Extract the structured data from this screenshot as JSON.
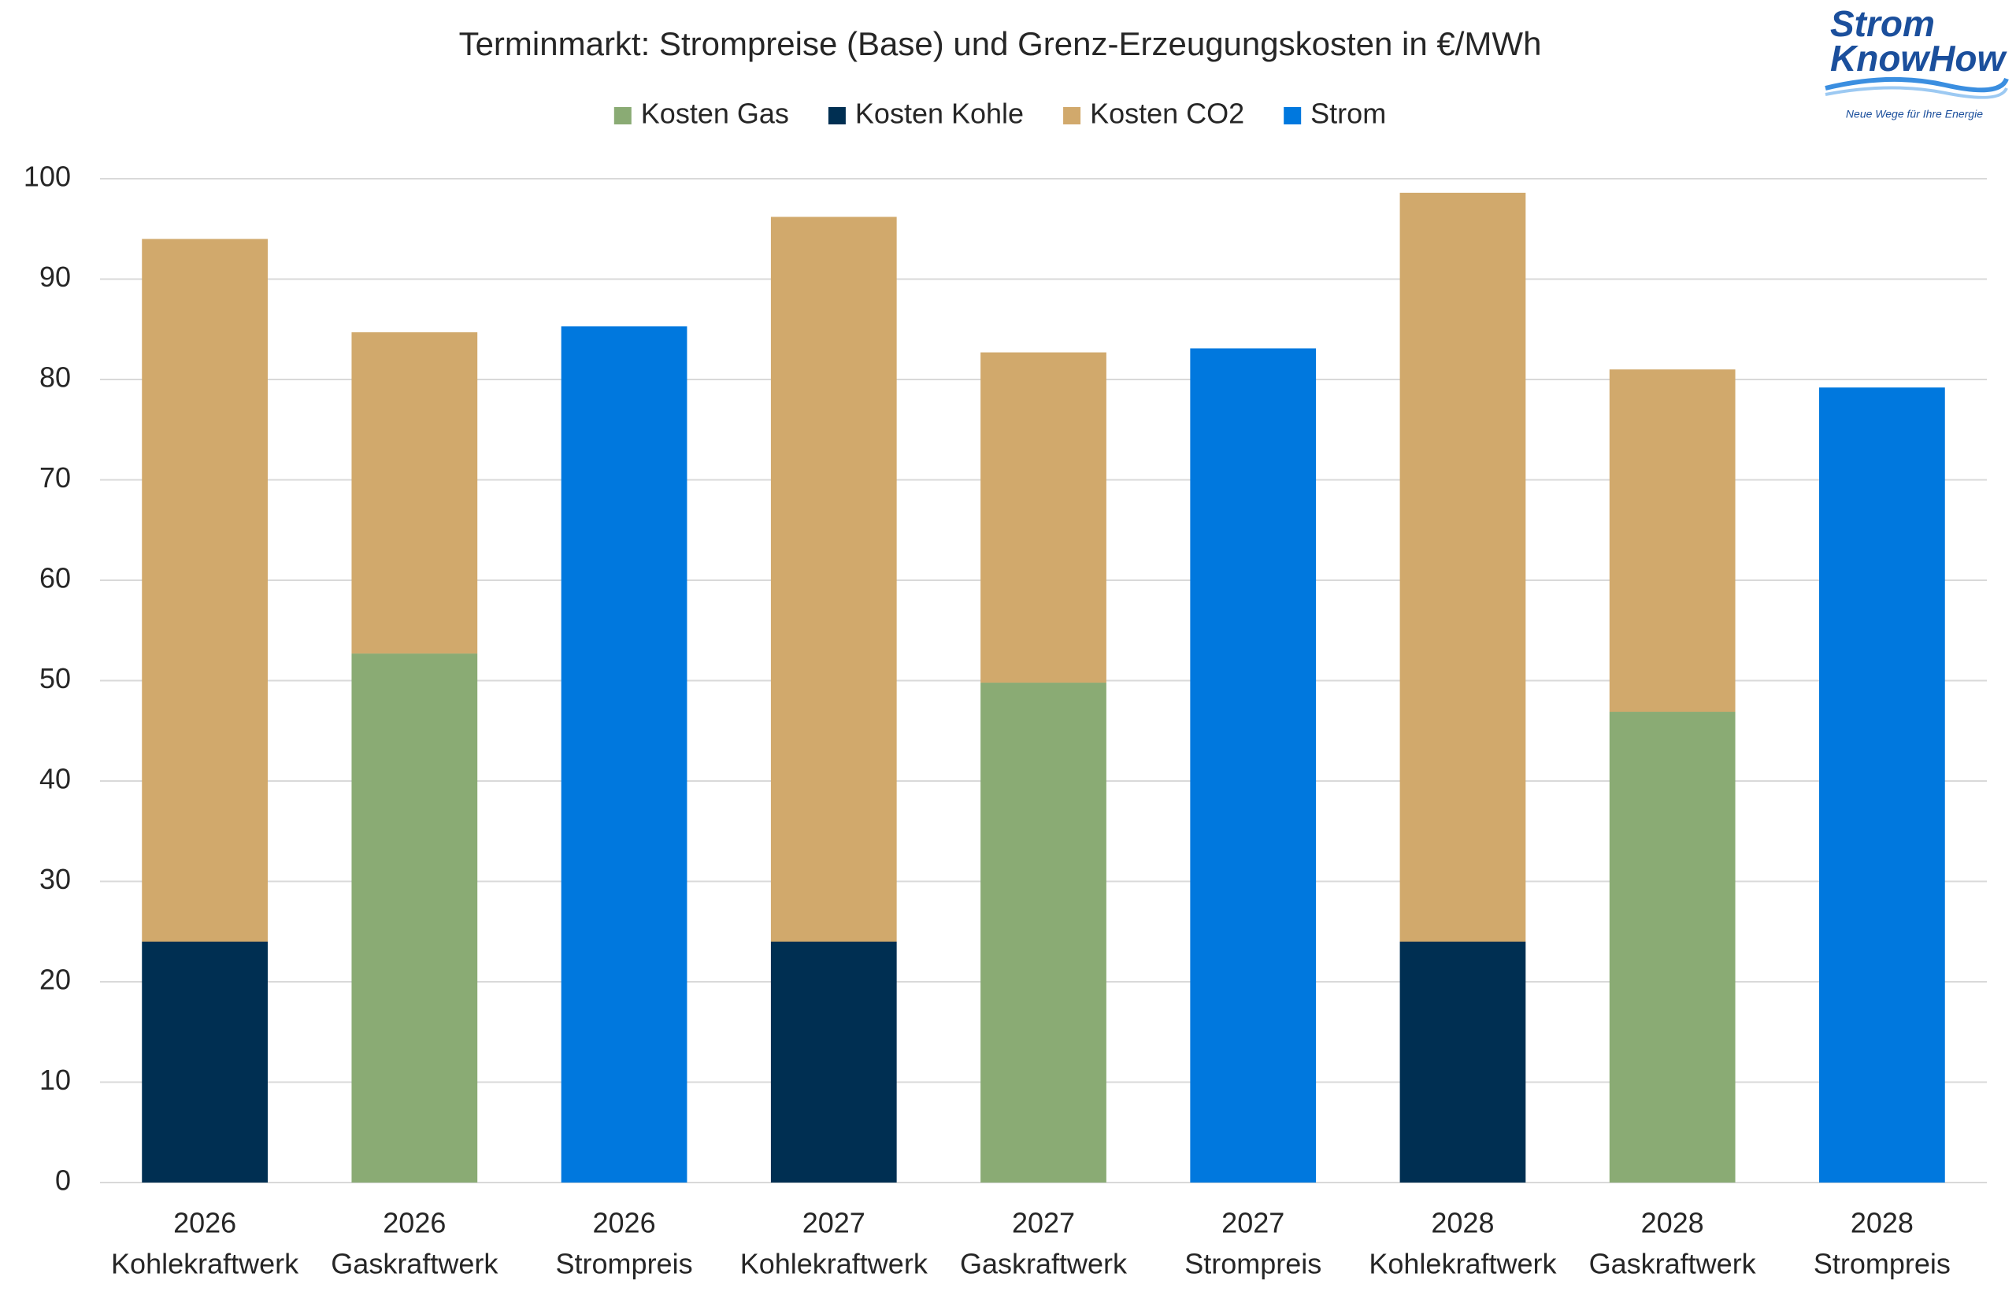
{
  "chart_data": {
    "type": "stacked_bar",
    "title": "Terminmarkt: Strompreise (Base) und Grenz-Erzeugungskosten in €/MWh",
    "categories": [
      [
        "2026",
        "Kohlekraftwerk"
      ],
      [
        "2026",
        "Gaskraftwerk"
      ],
      [
        "2026",
        "Strompreis"
      ],
      [
        "2027",
        "Kohlekraftwerk"
      ],
      [
        "2027",
        "Gaskraftwerk"
      ],
      [
        "2027",
        "Strompreis"
      ],
      [
        "2028",
        "Kohlekraftwerk"
      ],
      [
        "2028",
        "Gaskraftwerk"
      ],
      [
        "2028",
        "Strompreis"
      ]
    ],
    "series": [
      {
        "name": "Kosten Gas",
        "color": "#8aab74",
        "values": [
          null,
          52.7,
          null,
          null,
          49.8,
          null,
          null,
          46.9,
          null
        ]
      },
      {
        "name": "Kosten Kohle",
        "color": "#002f52",
        "values": [
          24,
          null,
          null,
          24,
          null,
          null,
          24,
          null,
          null
        ]
      },
      {
        "name": "Kosten CO2",
        "color": "#d1a96c",
        "values": [
          70,
          32,
          null,
          72.2,
          32.9,
          null,
          74.6,
          34.1,
          null
        ]
      },
      {
        "name": "Strom",
        "color": "#0078de",
        "values": [
          null,
          null,
          85.3,
          null,
          null,
          83.1,
          null,
          null,
          79.2
        ]
      }
    ],
    "ylim": [
      0,
      100
    ],
    "yticks": [
      0,
      10,
      20,
      30,
      40,
      50,
      60,
      70,
      80,
      90,
      100
    ],
    "grid": true,
    "legend": "top"
  },
  "logo": {
    "line1": "Strom",
    "line2": "KnowHow",
    "tagline": "Neue Wege für Ihre Energie"
  }
}
